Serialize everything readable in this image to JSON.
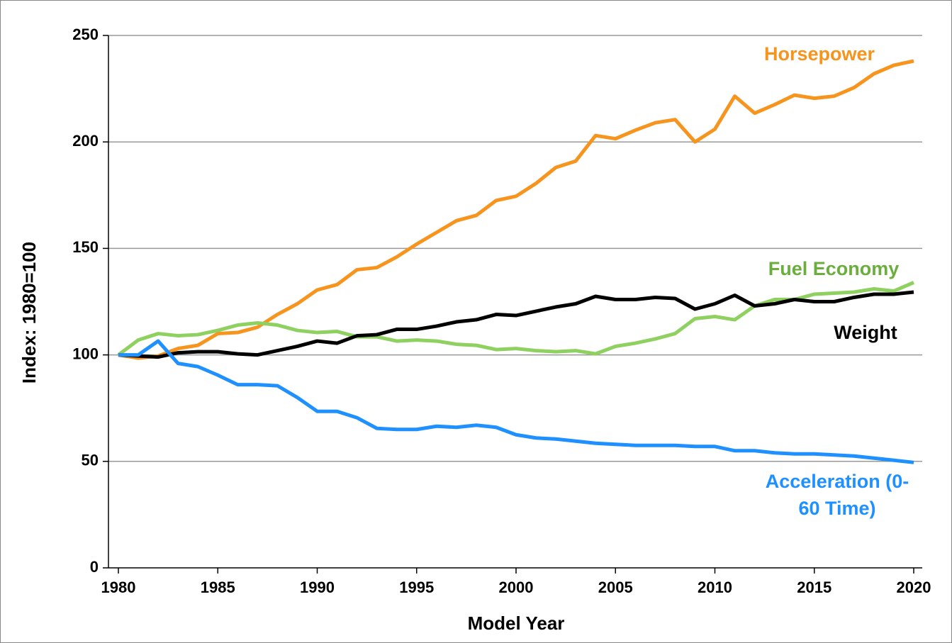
{
  "chart_data": {
    "type": "line",
    "xlabel": "Model Year",
    "ylabel": "Index: 1980=100",
    "x": [
      1980,
      1981,
      1982,
      1983,
      1984,
      1985,
      1986,
      1987,
      1988,
      1989,
      1990,
      1991,
      1992,
      1993,
      1994,
      1995,
      1996,
      1997,
      1998,
      1999,
      2000,
      2001,
      2002,
      2003,
      2004,
      2005,
      2006,
      2007,
      2008,
      2009,
      2010,
      2011,
      2012,
      2013,
      2014,
      2015,
      2016,
      2017,
      2018,
      2019,
      2020
    ],
    "xlim": [
      1980,
      2020
    ],
    "xticks": [
      1980,
      1985,
      1990,
      1995,
      2000,
      2005,
      2010,
      2015,
      2020
    ],
    "ylim": [
      0,
      250
    ],
    "yticks": [
      0,
      50,
      100,
      150,
      200,
      250
    ],
    "grid": true,
    "series": [
      {
        "name": "Horsepower",
        "color": "#f7941d",
        "values": [
          100,
          98.5,
          99.5,
          103,
          104.5,
          110,
          110.5,
          113,
          119,
          124,
          130.5,
          133,
          140,
          141,
          146,
          152,
          157.5,
          163,
          165.5,
          172.5,
          174.5,
          180.5,
          188,
          191,
          203,
          201.5,
          205.5,
          209,
          210.5,
          200,
          206,
          221.5,
          213.5,
          217.5,
          222,
          220.5,
          221.5,
          225.5,
          232,
          236,
          238
        ]
      },
      {
        "name": "Fuel Economy",
        "color": "#8fd160",
        "values": [
          100,
          107,
          110,
          109,
          109.5,
          111.5,
          114,
          115,
          114,
          111.5,
          110.5,
          111,
          108.5,
          108.5,
          106.5,
          107,
          106.5,
          105,
          104.5,
          102.5,
          103,
          102,
          101.5,
          102,
          100.5,
          104,
          105.5,
          107.5,
          110,
          117,
          118,
          116.5,
          123,
          126,
          126,
          128.5,
          129,
          129.5,
          131,
          130,
          134
        ]
      },
      {
        "name": "Weight",
        "color": "#000000",
        "values": [
          100,
          99.5,
          99,
          101,
          101.5,
          101.5,
          100.5,
          100,
          102,
          104,
          106.5,
          105.5,
          109,
          109.5,
          112,
          112,
          113.5,
          115.5,
          116.5,
          119,
          118.5,
          120.5,
          122.5,
          124,
          127.5,
          126,
          126,
          127,
          126.5,
          121.5,
          124,
          128,
          123,
          124,
          126,
          125,
          125,
          127,
          128.5,
          128.5,
          129.5
        ]
      },
      {
        "name": "Acceleration (0-60 Time)",
        "color": "#1e90ff",
        "values": [
          100,
          100,
          106.5,
          96,
          94.5,
          90.5,
          86,
          86,
          85.5,
          80,
          73.5,
          73.5,
          70.5,
          65.5,
          65,
          65,
          66.5,
          66,
          67,
          66,
          62.5,
          61,
          60.5,
          59.5,
          58.5,
          58,
          57.5,
          57.5,
          57.5,
          57,
          57,
          55,
          55,
          54,
          53.5,
          53.5,
          53,
          52.5,
          51.5,
          50.5,
          49.5
        ]
      }
    ]
  }
}
